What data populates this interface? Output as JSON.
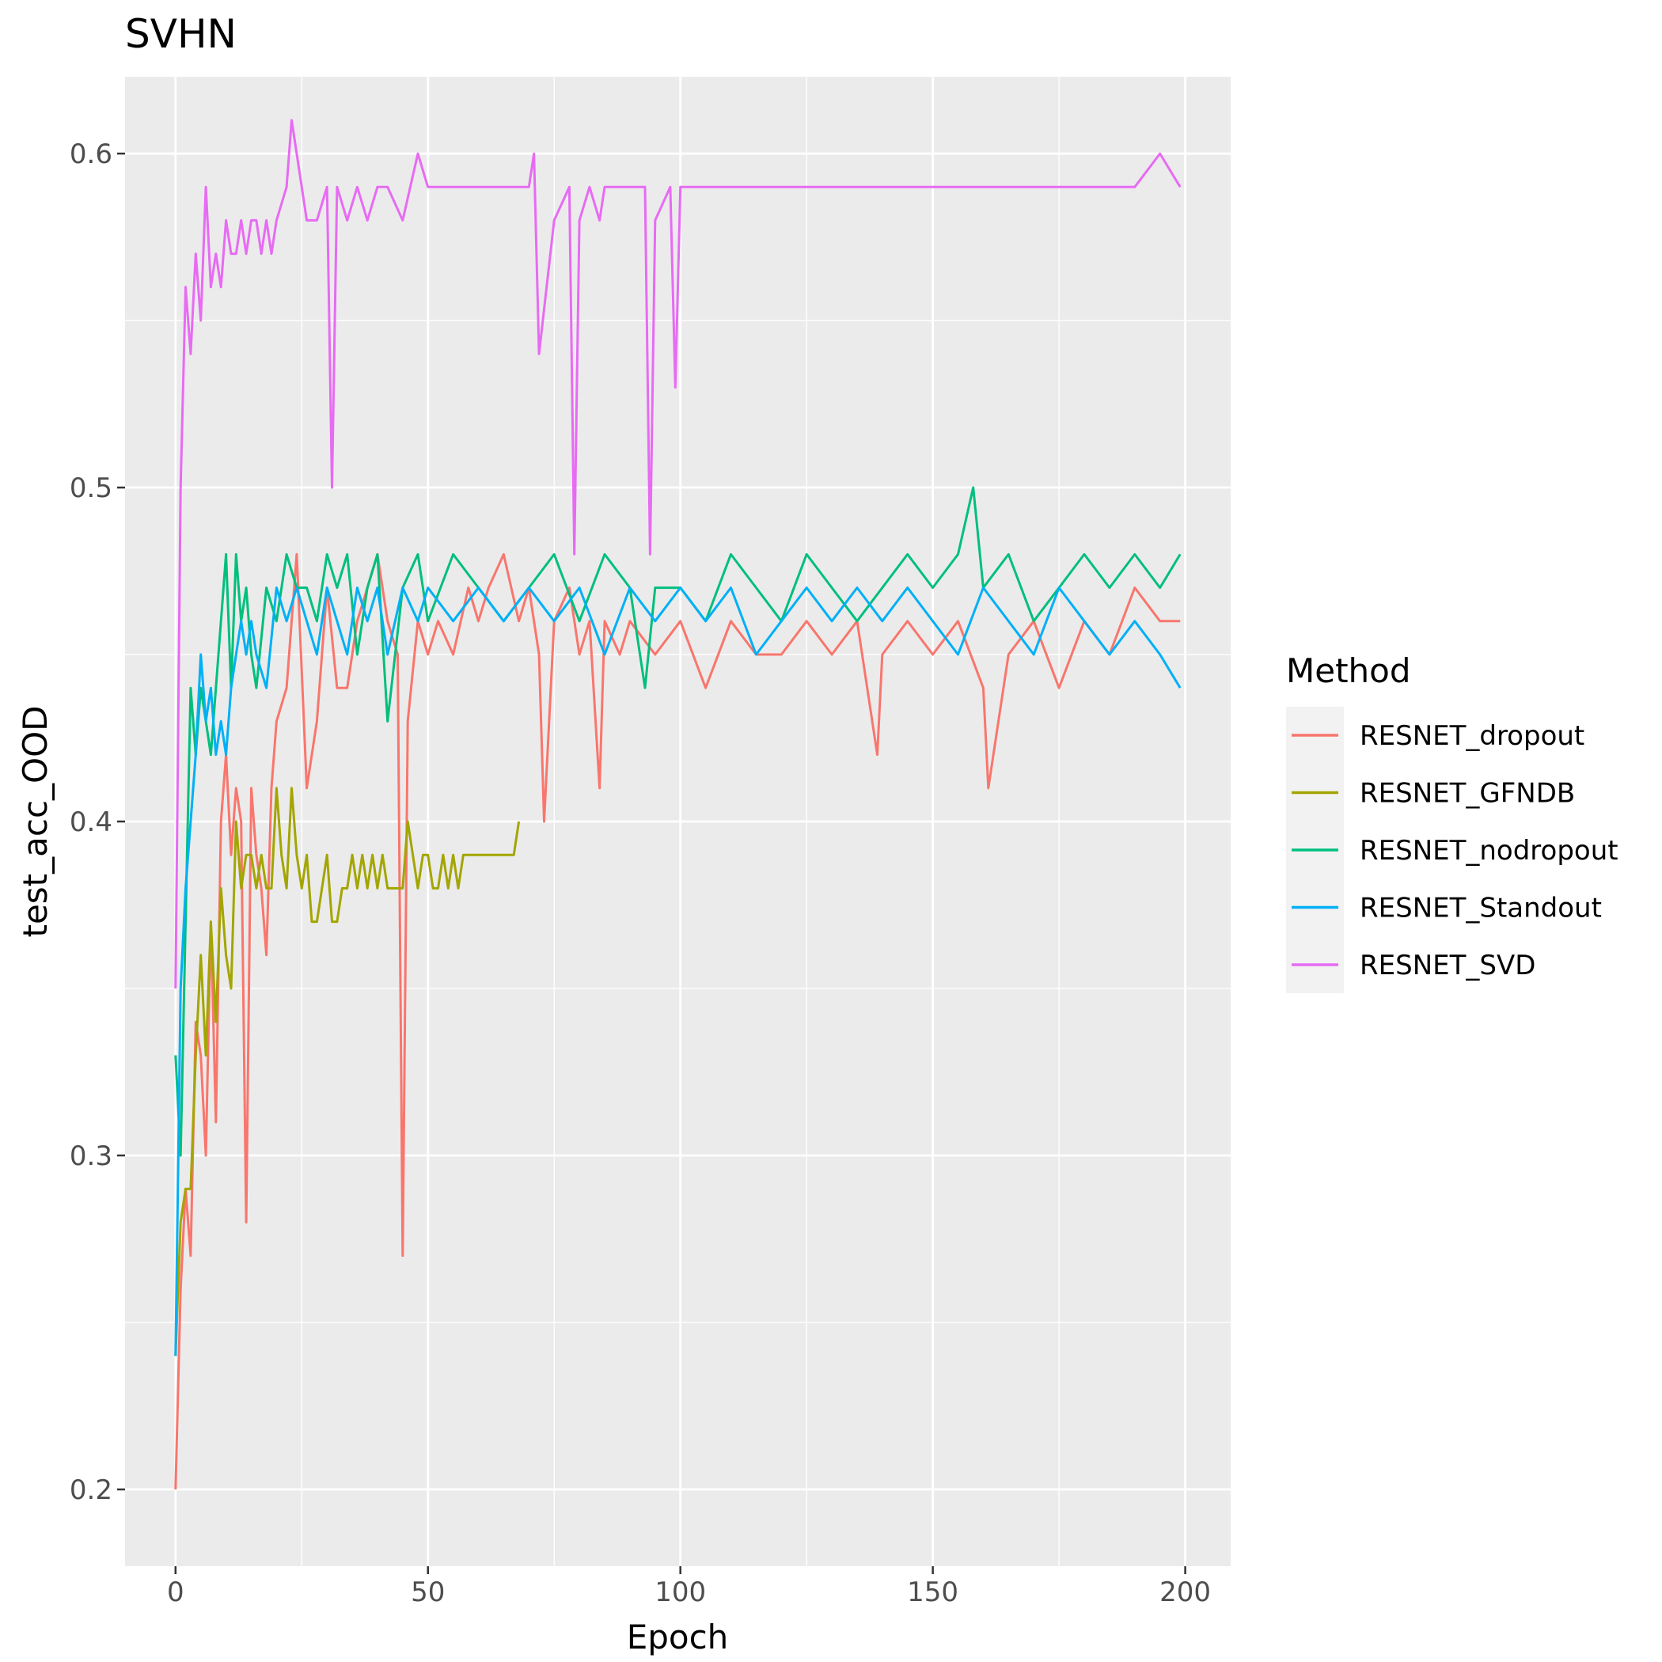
{
  "chart_data": {
    "type": "line",
    "title": "SVHN",
    "xlabel": "Epoch",
    "ylabel": "test_acc_OOD",
    "xlim": [
      -10,
      209
    ],
    "ylim": [
      0.177,
      0.623
    ],
    "x_ticks": [
      0,
      50,
      100,
      150,
      200
    ],
    "x_tick_labels": [
      "0",
      "50",
      "100",
      "150",
      "200"
    ],
    "y_ticks": [
      0.2,
      0.3,
      0.4,
      0.5,
      0.6
    ],
    "y_tick_labels": [
      "0.2",
      "0.3",
      "0.4",
      "0.5",
      "0.6"
    ],
    "grid": true,
    "legend": {
      "title": "Method",
      "position": "right"
    },
    "series": [
      {
        "name": "RESNET_dropout",
        "color": "#F8766D",
        "x": [
          0,
          1,
          2,
          3,
          4,
          5,
          6,
          7,
          8,
          9,
          10,
          11,
          12,
          13,
          14,
          15,
          16,
          17,
          18,
          19,
          20,
          22,
          24,
          26,
          28,
          30,
          32,
          34,
          36,
          38,
          40,
          42,
          44,
          45,
          46,
          48,
          50,
          52,
          55,
          58,
          60,
          62,
          65,
          68,
          70,
          72,
          73,
          75,
          78,
          80,
          82,
          84,
          85,
          88,
          90,
          95,
          100,
          105,
          110,
          115,
          120,
          125,
          130,
          135,
          139,
          140,
          145,
          150,
          155,
          160,
          161,
          165,
          170,
          175,
          180,
          185,
          190,
          195,
          199
        ],
        "y": [
          0.2,
          0.26,
          0.29,
          0.27,
          0.34,
          0.33,
          0.3,
          0.37,
          0.31,
          0.4,
          0.42,
          0.39,
          0.41,
          0.4,
          0.28,
          0.41,
          0.39,
          0.38,
          0.36,
          0.41,
          0.43,
          0.44,
          0.48,
          0.41,
          0.43,
          0.47,
          0.44,
          0.44,
          0.46,
          0.47,
          0.48,
          0.46,
          0.45,
          0.27,
          0.43,
          0.46,
          0.45,
          0.46,
          0.45,
          0.47,
          0.46,
          0.47,
          0.48,
          0.46,
          0.47,
          0.45,
          0.4,
          0.46,
          0.47,
          0.45,
          0.46,
          0.41,
          0.46,
          0.45,
          0.46,
          0.45,
          0.46,
          0.44,
          0.46,
          0.45,
          0.45,
          0.46,
          0.45,
          0.46,
          0.42,
          0.45,
          0.46,
          0.45,
          0.46,
          0.44,
          0.41,
          0.45,
          0.46,
          0.44,
          0.46,
          0.45,
          0.47,
          0.46,
          0.46
        ]
      },
      {
        "name": "RESNET_GFNDB",
        "color": "#A3A500",
        "x": [
          0,
          1,
          2,
          3,
          4,
          5,
          6,
          7,
          8,
          9,
          10,
          11,
          12,
          13,
          14,
          15,
          16,
          17,
          18,
          19,
          20,
          21,
          22,
          23,
          24,
          25,
          26,
          27,
          28,
          29,
          30,
          31,
          32,
          33,
          34,
          35,
          36,
          37,
          38,
          39,
          40,
          41,
          42,
          43,
          44,
          45,
          46,
          47,
          48,
          49,
          50,
          51,
          52,
          53,
          54,
          55,
          56,
          57,
          58,
          59,
          60,
          61,
          62,
          63,
          64,
          65,
          66,
          67,
          68
        ],
        "y": [
          0.24,
          0.28,
          0.29,
          0.29,
          0.33,
          0.36,
          0.33,
          0.37,
          0.34,
          0.38,
          0.36,
          0.35,
          0.4,
          0.38,
          0.39,
          0.39,
          0.38,
          0.39,
          0.38,
          0.38,
          0.41,
          0.39,
          0.38,
          0.41,
          0.39,
          0.38,
          0.39,
          0.37,
          0.37,
          0.38,
          0.39,
          0.37,
          0.37,
          0.38,
          0.38,
          0.39,
          0.38,
          0.39,
          0.38,
          0.39,
          0.38,
          0.39,
          0.38,
          0.38,
          0.38,
          0.38,
          0.4,
          0.39,
          0.38,
          0.39,
          0.39,
          0.38,
          0.38,
          0.39,
          0.38,
          0.39,
          0.38,
          0.39,
          0.39,
          0.39,
          0.39,
          0.39,
          0.39,
          0.39,
          0.39,
          0.39,
          0.39,
          0.39,
          0.4
        ]
      },
      {
        "name": "RESNET_nodropout",
        "color": "#00BF7D",
        "x": [
          0,
          1,
          2,
          3,
          4,
          5,
          6,
          7,
          8,
          9,
          10,
          11,
          12,
          13,
          14,
          15,
          16,
          18,
          20,
          22,
          24,
          26,
          28,
          30,
          32,
          34,
          36,
          38,
          40,
          42,
          45,
          48,
          50,
          55,
          60,
          65,
          70,
          75,
          80,
          85,
          90,
          93,
          95,
          100,
          105,
          110,
          115,
          120,
          125,
          130,
          135,
          140,
          145,
          150,
          155,
          158,
          160,
          165,
          170,
          175,
          180,
          185,
          190,
          195,
          199
        ],
        "y": [
          0.33,
          0.3,
          0.37,
          0.44,
          0.42,
          0.44,
          0.43,
          0.42,
          0.44,
          0.46,
          0.48,
          0.44,
          0.48,
          0.46,
          0.47,
          0.45,
          0.44,
          0.47,
          0.46,
          0.48,
          0.47,
          0.47,
          0.46,
          0.48,
          0.47,
          0.48,
          0.45,
          0.47,
          0.48,
          0.43,
          0.47,
          0.48,
          0.46,
          0.48,
          0.47,
          0.46,
          0.47,
          0.48,
          0.46,
          0.48,
          0.47,
          0.44,
          0.47,
          0.47,
          0.46,
          0.48,
          0.47,
          0.46,
          0.48,
          0.47,
          0.46,
          0.47,
          0.48,
          0.47,
          0.48,
          0.5,
          0.47,
          0.48,
          0.46,
          0.47,
          0.48,
          0.47,
          0.48,
          0.47,
          0.48
        ]
      },
      {
        "name": "RESNET_Standout",
        "color": "#00B0F6",
        "x": [
          0,
          1,
          2,
          3,
          4,
          5,
          6,
          7,
          8,
          9,
          10,
          11,
          12,
          13,
          14,
          15,
          16,
          18,
          20,
          22,
          24,
          26,
          28,
          30,
          32,
          34,
          36,
          38,
          40,
          42,
          45,
          48,
          50,
          55,
          60,
          65,
          70,
          75,
          80,
          85,
          90,
          95,
          100,
          105,
          110,
          115,
          120,
          125,
          130,
          135,
          140,
          145,
          150,
          155,
          160,
          165,
          170,
          175,
          180,
          185,
          190,
          195,
          199
        ],
        "y": [
          0.24,
          0.35,
          0.38,
          0.4,
          0.42,
          0.45,
          0.43,
          0.44,
          0.42,
          0.43,
          0.42,
          0.44,
          0.45,
          0.46,
          0.45,
          0.46,
          0.45,
          0.44,
          0.47,
          0.46,
          0.47,
          0.46,
          0.45,
          0.47,
          0.46,
          0.45,
          0.47,
          0.46,
          0.47,
          0.45,
          0.47,
          0.46,
          0.47,
          0.46,
          0.47,
          0.46,
          0.47,
          0.46,
          0.47,
          0.45,
          0.47,
          0.46,
          0.47,
          0.46,
          0.47,
          0.45,
          0.46,
          0.47,
          0.46,
          0.47,
          0.46,
          0.47,
          0.46,
          0.45,
          0.47,
          0.46,
          0.45,
          0.47,
          0.46,
          0.45,
          0.46,
          0.45,
          0.44
        ]
      },
      {
        "name": "RESNET_SVD",
        "color": "#E76BF3",
        "x": [
          0,
          1,
          2,
          3,
          4,
          5,
          6,
          7,
          8,
          9,
          10,
          11,
          12,
          13,
          14,
          15,
          16,
          17,
          18,
          19,
          20,
          22,
          23,
          24,
          26,
          28,
          30,
          31,
          32,
          34,
          36,
          38,
          40,
          42,
          45,
          48,
          50,
          55,
          60,
          65,
          70,
          71,
          72,
          75,
          78,
          79,
          80,
          82,
          84,
          85,
          88,
          90,
          93,
          94,
          95,
          98,
          99,
          100,
          105,
          110,
          115,
          120,
          125,
          130,
          135,
          140,
          145,
          150,
          155,
          160,
          165,
          170,
          175,
          180,
          185,
          190,
          195,
          199
        ],
        "y": [
          0.35,
          0.5,
          0.56,
          0.54,
          0.57,
          0.55,
          0.59,
          0.56,
          0.57,
          0.56,
          0.58,
          0.57,
          0.57,
          0.58,
          0.57,
          0.58,
          0.58,
          0.57,
          0.58,
          0.57,
          0.58,
          0.59,
          0.61,
          0.6,
          0.58,
          0.58,
          0.59,
          0.5,
          0.59,
          0.58,
          0.59,
          0.58,
          0.59,
          0.59,
          0.58,
          0.6,
          0.59,
          0.59,
          0.59,
          0.59,
          0.59,
          0.6,
          0.54,
          0.58,
          0.59,
          0.48,
          0.58,
          0.59,
          0.58,
          0.59,
          0.59,
          0.59,
          0.59,
          0.48,
          0.58,
          0.59,
          0.53,
          0.59,
          0.59,
          0.59,
          0.59,
          0.59,
          0.59,
          0.59,
          0.59,
          0.59,
          0.59,
          0.59,
          0.59,
          0.59,
          0.59,
          0.59,
          0.59,
          0.59,
          0.59,
          0.59,
          0.6,
          0.59
        ]
      }
    ]
  }
}
